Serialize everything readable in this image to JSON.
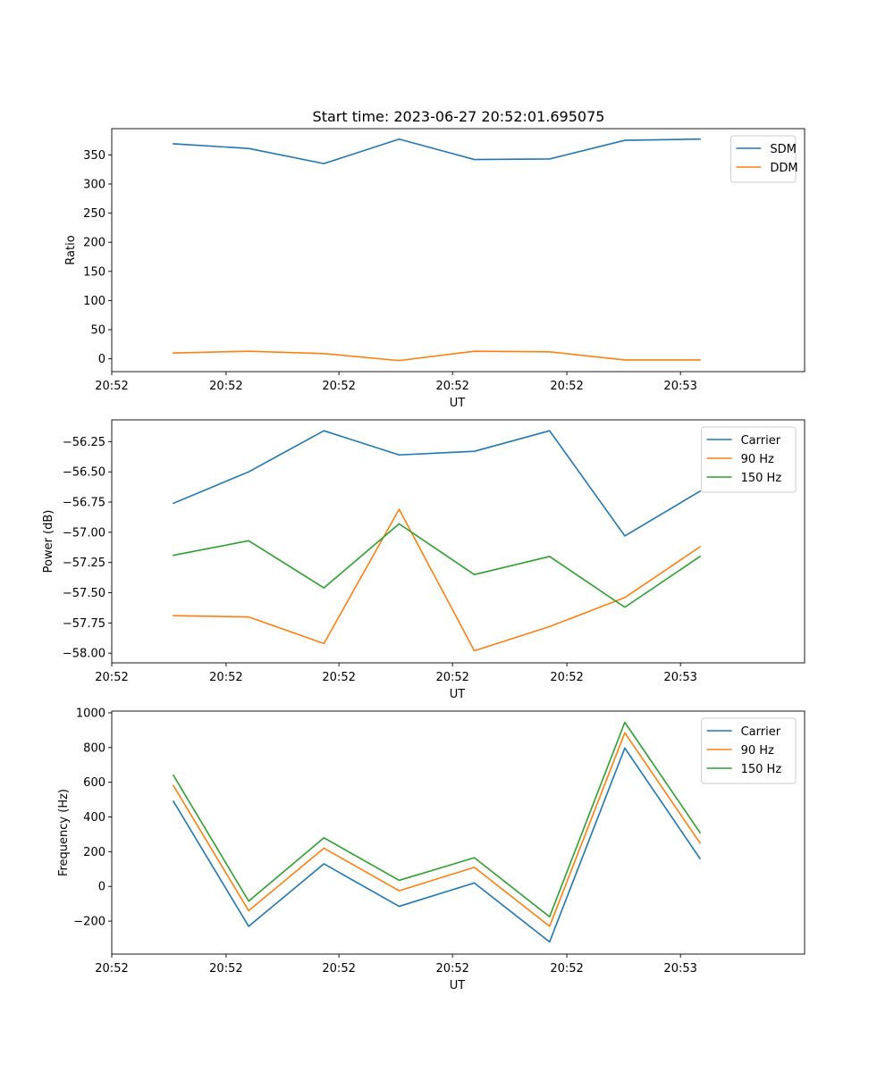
{
  "figure": {
    "title": "Start time: 2023-06-27 20:52:01.695075"
  },
  "chart_data": [
    {
      "type": "line",
      "xlabel": "UT",
      "ylabel": "Ratio",
      "x": [
        1,
        2,
        3,
        4,
        5,
        6,
        7,
        8
      ],
      "xlim": [
        0.18,
        9.39
      ],
      "x_ticks": [
        {
          "x": 0.18,
          "label": "20:52"
        },
        {
          "x": 1.7,
          "label": "20:52"
        },
        {
          "x": 3.2,
          "label": "20:52"
        },
        {
          "x": 4.71,
          "label": "20:52"
        },
        {
          "x": 6.23,
          "label": "20:52"
        },
        {
          "x": 7.74,
          "label": "20:53"
        }
      ],
      "ylim": [
        -22,
        395
      ],
      "y_ticks": [
        {
          "y": 0,
          "label": "0"
        },
        {
          "y": 50,
          "label": "50"
        },
        {
          "y": 100,
          "label": "100"
        },
        {
          "y": 150,
          "label": "150"
        },
        {
          "y": 200,
          "label": "200"
        },
        {
          "y": 250,
          "label": "250"
        },
        {
          "y": 300,
          "label": "300"
        },
        {
          "y": 350,
          "label": "350"
        }
      ],
      "legend_position": "top-right",
      "series": [
        {
          "name": "SDM",
          "color": "#1f77b4",
          "values": [
            369,
            361,
            335,
            377,
            342,
            343,
            375,
            377
          ]
        },
        {
          "name": "DDM",
          "color": "#ff7f0e",
          "values": [
            10,
            13,
            9,
            -3,
            13,
            12,
            -2,
            -2
          ]
        }
      ]
    },
    {
      "type": "line",
      "xlabel": "UT",
      "ylabel": "Power (dB)",
      "x": [
        1,
        2,
        3,
        4,
        5,
        6,
        7,
        8
      ],
      "xlim": [
        0.18,
        9.39
      ],
      "x_ticks": [
        {
          "x": 0.18,
          "label": "20:52"
        },
        {
          "x": 1.7,
          "label": "20:52"
        },
        {
          "x": 3.2,
          "label": "20:52"
        },
        {
          "x": 4.71,
          "label": "20:52"
        },
        {
          "x": 6.23,
          "label": "20:52"
        },
        {
          "x": 7.74,
          "label": "20:53"
        }
      ],
      "ylim": [
        -58.08,
        -56.07
      ],
      "y_ticks": [
        {
          "y": -58.0,
          "label": "−58.00"
        },
        {
          "y": -57.75,
          "label": "−57.75"
        },
        {
          "y": -57.5,
          "label": "−57.50"
        },
        {
          "y": -57.25,
          "label": "−57.25"
        },
        {
          "y": -57.0,
          "label": "−57.00"
        },
        {
          "y": -56.75,
          "label": "−56.75"
        },
        {
          "y": -56.5,
          "label": "−56.50"
        },
        {
          "y": -56.25,
          "label": "−56.25"
        }
      ],
      "legend_position": "top-right",
      "series": [
        {
          "name": "Carrier",
          "color": "#1f77b4",
          "values": [
            -56.76,
            -56.5,
            -56.16,
            -56.36,
            -56.33,
            -56.16,
            -57.03,
            -56.66
          ]
        },
        {
          "name": "90 Hz",
          "color": "#ff7f0e",
          "values": [
            -57.69,
            -57.7,
            -57.92,
            -56.81,
            -57.98,
            -57.78,
            -57.54,
            -57.12
          ]
        },
        {
          "name": "150 Hz",
          "color": "#2ca02c",
          "values": [
            -57.19,
            -57.07,
            -57.46,
            -56.93,
            -57.35,
            -57.2,
            -57.62,
            -57.2
          ]
        }
      ]
    },
    {
      "type": "line",
      "xlabel": "UT",
      "ylabel": "Frequency (Hz)",
      "x": [
        1,
        2,
        3,
        4,
        5,
        6,
        7,
        8
      ],
      "xlim": [
        0.18,
        9.39
      ],
      "x_ticks": [
        {
          "x": 0.18,
          "label": "20:52"
        },
        {
          "x": 1.7,
          "label": "20:52"
        },
        {
          "x": 3.2,
          "label": "20:52"
        },
        {
          "x": 4.71,
          "label": "20:52"
        },
        {
          "x": 6.23,
          "label": "20:52"
        },
        {
          "x": 7.74,
          "label": "20:53"
        }
      ],
      "ylim": [
        -390,
        1010
      ],
      "y_ticks": [
        {
          "y": -200,
          "label": "−200"
        },
        {
          "y": 0,
          "label": "0"
        },
        {
          "y": 200,
          "label": "200"
        },
        {
          "y": 400,
          "label": "400"
        },
        {
          "y": 600,
          "label": "600"
        },
        {
          "y": 800,
          "label": "800"
        },
        {
          "y": 1000,
          "label": "1000"
        }
      ],
      "legend_position": "top-right",
      "series": [
        {
          "name": "Carrier",
          "color": "#1f77b4",
          "values": [
            490,
            -230,
            130,
            -115,
            20,
            -320,
            797,
            160
          ]
        },
        {
          "name": "90 Hz",
          "color": "#ff7f0e",
          "values": [
            580,
            -140,
            220,
            -25,
            110,
            -230,
            885,
            250
          ]
        },
        {
          "name": "150 Hz",
          "color": "#2ca02c",
          "values": [
            640,
            -85,
            280,
            35,
            165,
            -175,
            945,
            310
          ]
        }
      ]
    }
  ]
}
